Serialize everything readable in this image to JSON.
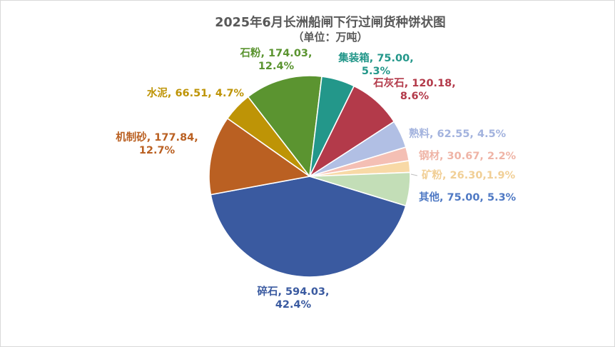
{
  "chart_data": {
    "type": "pie",
    "title": "2025年6月长洲船闸下行过闸货种饼状图",
    "subtitle": "（单位：万吨）",
    "legend": "none",
    "slices": [
      {
        "name": "碎石",
        "value": 594.03,
        "percent": "42.4%",
        "label": "碎石, 594.03,",
        "label2": "42.4%",
        "color": "#3a5aa0"
      },
      {
        "name": "机制砂",
        "value": 177.84,
        "percent": "12.7%",
        "label": "机制砂, 177.84,",
        "label2": "12.7%",
        "color": "#ba6022"
      },
      {
        "name": "水泥",
        "value": 66.51,
        "percent": "4.7%",
        "label": "水泥, 66.51, 4.7%",
        "label2": "",
        "color": "#be9406"
      },
      {
        "name": "石粉",
        "value": 174.03,
        "percent": "12.4%",
        "label": "石粉, 174.03,",
        "label2": "12.4%",
        "color": "#5b9430"
      },
      {
        "name": "集装箱",
        "value": 75.0,
        "percent": "5.3%",
        "label": "集装箱, 75.00,",
        "label2": "5.3%",
        "color": "#23978a"
      },
      {
        "name": "石灰石",
        "value": 120.18,
        "percent": "8.6%",
        "label": "石灰石, 120.18,",
        "label2": "8.6%",
        "color": "#b33a4a"
      },
      {
        "name": "熟料",
        "value": 62.55,
        "percent": "4.5%",
        "label": "熟料, 62.55, 4.5%",
        "label2": "",
        "color": "#b1bfe4"
      },
      {
        "name": "钢材",
        "value": 30.67,
        "percent": "2.2%",
        "label": "钢材, 30.67, 2.2%",
        "label2": "",
        "color": "#f4bfb4"
      },
      {
        "name": "矿粉",
        "value": 26.3,
        "percent": "1.9%",
        "label": "矿粉, 26.30,1.9%",
        "label2": "",
        "color": "#f8d9a6"
      },
      {
        "name": "其他",
        "value": 75.0,
        "percent": "5.3%",
        "label": "其他, 75.00, 5.3%",
        "label2": "",
        "color": "#c3deb7"
      }
    ]
  },
  "label_colors": {
    "碎石": "#3a5aa0",
    "机制砂": "#ba6022",
    "水泥": "#be9406",
    "石粉": "#5b9430",
    "集装箱": "#23978a",
    "石灰石": "#b33a4a",
    "熟料": "#a3b3de",
    "钢材": "#efb4a6",
    "矿粉": "#f1cf96",
    "其他": "#4f79c4"
  }
}
